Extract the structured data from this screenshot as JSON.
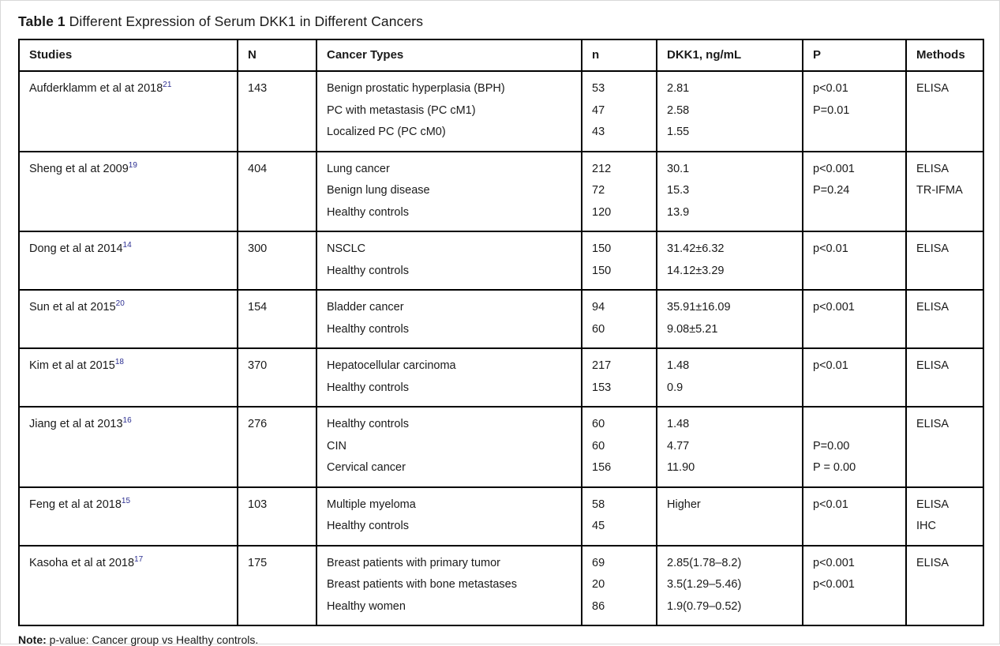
{
  "title": {
    "label": "Table 1",
    "text": "Different Expression of Serum DKK1 in Different Cancers"
  },
  "colors": {
    "reference_superscript": "#2e3192",
    "table_border": "#000000",
    "text": "#1a1a1a"
  },
  "table": {
    "headers": [
      "Studies",
      "N",
      "Cancer Types",
      "n",
      "DKK1, ng/mL",
      "P",
      "Methods"
    ],
    "rows": [
      {
        "study": "Aufderklamm et al at 2018",
        "ref": "21",
        "N": "143",
        "cancer_types": [
          "Benign prostatic hyperplasia (BPH)",
          "PC with metastasis (PC cM1)",
          "Localized PC (PC cM0)"
        ],
        "n": [
          "53",
          "47",
          "43"
        ],
        "dkk1": [
          "2.81",
          "2.58",
          "1.55"
        ],
        "p": [
          "p<0.01",
          "P=0.01"
        ],
        "methods": [
          "ELISA"
        ]
      },
      {
        "study": "Sheng et al at 2009",
        "ref": "19",
        "N": "404",
        "cancer_types": [
          "Lung cancer",
          "Benign lung disease",
          "Healthy controls"
        ],
        "n": [
          "212",
          "72",
          "120"
        ],
        "dkk1": [
          "30.1",
          "15.3",
          "13.9"
        ],
        "p": [
          "p<0.001",
          "P=0.24"
        ],
        "methods": [
          "ELISA",
          "TR-IFMA"
        ]
      },
      {
        "study": "Dong et al at 2014",
        "ref": "14",
        "N": "300",
        "cancer_types": [
          "NSCLC",
          "Healthy controls"
        ],
        "n": [
          "150",
          "150"
        ],
        "dkk1": [
          "31.42±6.32",
          "14.12±3.29"
        ],
        "p": [
          "p<0.01"
        ],
        "methods": [
          "ELISA"
        ]
      },
      {
        "study": "Sun et al at 2015",
        "ref": "20",
        "N": "154",
        "cancer_types": [
          "Bladder cancer",
          "Healthy controls"
        ],
        "n": [
          "94",
          "60"
        ],
        "dkk1": [
          "35.91±16.09",
          "9.08±5.21"
        ],
        "p": [
          "p<0.001"
        ],
        "methods": [
          "ELISA"
        ]
      },
      {
        "study": "Kim et al at 2015",
        "ref": "18",
        "N": "370",
        "cancer_types": [
          "Hepatocellular carcinoma",
          "Healthy controls"
        ],
        "n": [
          "217",
          "153"
        ],
        "dkk1": [
          "1.48",
          "0.9"
        ],
        "p": [
          "p<0.01"
        ],
        "methods": [
          "ELISA"
        ]
      },
      {
        "study": "Jiang et al at 2013",
        "ref": "16",
        "N": "276",
        "cancer_types": [
          "Healthy controls",
          "CIN",
          "Cervical cancer"
        ],
        "n": [
          "60",
          "60",
          "156"
        ],
        "dkk1": [
          "1.48",
          "4.77",
          "11.90"
        ],
        "p": [
          "",
          "P=0.00",
          "P = 0.00"
        ],
        "methods": [
          "ELISA"
        ]
      },
      {
        "study": "Feng et al at 2018",
        "ref": "15",
        "N": "103",
        "cancer_types": [
          "Multiple myeloma",
          "Healthy controls"
        ],
        "n": [
          "58",
          "45"
        ],
        "dkk1": [
          "Higher"
        ],
        "p": [
          "p<0.01"
        ],
        "methods": [
          "ELISA",
          "IHC"
        ]
      },
      {
        "study": "Kasoha et al at 2018",
        "ref": "17",
        "N": "175",
        "cancer_types": [
          "Breast patients with primary tumor",
          "Breast patients with bone metastases",
          "Healthy women"
        ],
        "n": [
          "69",
          "20",
          "86"
        ],
        "dkk1": [
          "2.85(1.78–8.2)",
          "3.5(1.29–5.46)",
          "1.9(0.79–0.52)"
        ],
        "p": [
          "p<0.001",
          "p<0.001"
        ],
        "methods": [
          "ELISA"
        ]
      }
    ]
  },
  "note": {
    "label": "Note:",
    "text": "p-value: Cancer group vs Healthy controls."
  }
}
